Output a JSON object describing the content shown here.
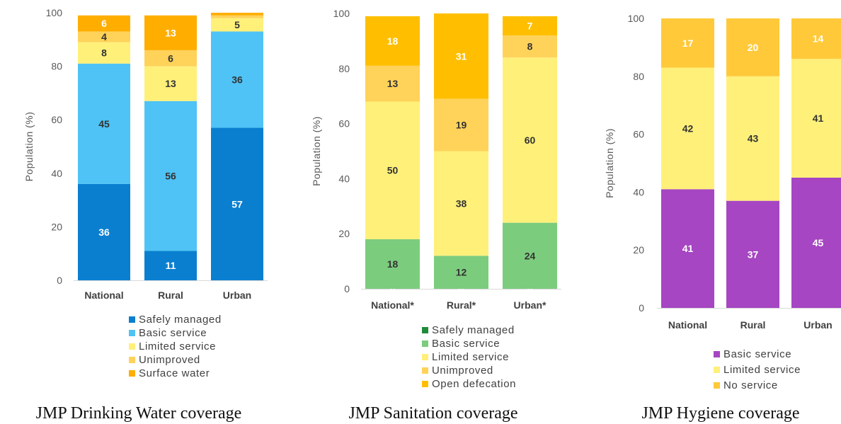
{
  "chart_data": [
    {
      "type": "bar",
      "stacked": true,
      "caption": "JMP Drinking Water coverage",
      "ylabel": "Population (%)",
      "ylim": [
        0,
        100
      ],
      "yticks": [
        0,
        20,
        40,
        60,
        80,
        100
      ],
      "categories": [
        "National",
        "Rural",
        "Urban"
      ],
      "legend_position": "bottom",
      "series": [
        {
          "name": "Safely managed",
          "color": "#0a7fd0",
          "values": [
            36,
            11,
            57
          ],
          "labels": [
            "36",
            "11",
            "57"
          ],
          "label_color": "#ffffff"
        },
        {
          "name": "Basic service",
          "color": "#4fc3f5",
          "values": [
            45,
            56,
            36
          ],
          "labels": [
            "45",
            "56",
            "36"
          ],
          "label_color": "#333333"
        },
        {
          "name": "Limited service",
          "color": "#fff07a",
          "values": [
            8,
            13,
            5
          ],
          "labels": [
            "8",
            "13",
            "5"
          ],
          "label_color": "#333333"
        },
        {
          "name": "Unimproved",
          "color": "#ffd25a",
          "values": [
            4,
            6,
            1
          ],
          "labels": [
            "4",
            "6",
            ""
          ],
          "label_color": "#333333"
        },
        {
          "name": "Surface water",
          "color": "#ffae00",
          "values": [
            6,
            13,
            1
          ],
          "labels": [
            "6",
            "13",
            ""
          ],
          "label_color": "#ffffff"
        }
      ]
    },
    {
      "type": "bar",
      "stacked": true,
      "caption": "JMP Sanitation coverage",
      "ylabel": "Population (%)",
      "ylim": [
        0,
        100
      ],
      "yticks": [
        0,
        20,
        40,
        60,
        80,
        100
      ],
      "categories": [
        "National*",
        "Rural*",
        "Urban*"
      ],
      "legend_position": "bottom",
      "series": [
        {
          "name": "Safely managed",
          "color": "#1f8a3a",
          "values": [
            0,
            0,
            0
          ],
          "labels": [
            "0",
            "0",
            "0"
          ],
          "label_color": "#ffffff"
        },
        {
          "name": "Basic service",
          "color": "#7ccc7e",
          "values": [
            18,
            12,
            24
          ],
          "labels": [
            "18",
            "12",
            "24"
          ],
          "label_color": "#333333"
        },
        {
          "name": "Limited service",
          "color": "#fff07a",
          "values": [
            50,
            38,
            60
          ],
          "labels": [
            "50",
            "38",
            "60"
          ],
          "label_color": "#333333"
        },
        {
          "name": "Unimproved",
          "color": "#ffd25a",
          "values": [
            13,
            19,
            8
          ],
          "labels": [
            "13",
            "19",
            "8"
          ],
          "label_color": "#333333"
        },
        {
          "name": "Open defecation",
          "color": "#ffbf00",
          "values": [
            18,
            31,
            7
          ],
          "labels": [
            "18",
            "31",
            "7"
          ],
          "label_color": "#ffffff"
        }
      ]
    },
    {
      "type": "bar",
      "stacked": true,
      "caption": "JMP Hygiene coverage",
      "ylabel": "Population (%)",
      "ylim": [
        0,
        100
      ],
      "yticks": [
        0,
        20,
        40,
        60,
        80,
        100
      ],
      "categories": [
        "National",
        "Rural",
        "Urban"
      ],
      "legend_position": "bottom",
      "series": [
        {
          "name": "Basic service",
          "color": "#a646c2",
          "values": [
            41,
            37,
            45
          ],
          "labels": [
            "41",
            "37",
            "45"
          ],
          "label_color": "#ffffff"
        },
        {
          "name": "Limited service",
          "color": "#fff07a",
          "values": [
            42,
            43,
            41
          ],
          "labels": [
            "42",
            "43",
            "41"
          ],
          "label_color": "#333333"
        },
        {
          "name": "No service",
          "color": "#ffc93a",
          "values": [
            17,
            20,
            14
          ],
          "labels": [
            "17",
            "20",
            "14"
          ],
          "label_color": "#ffffff"
        }
      ]
    }
  ]
}
